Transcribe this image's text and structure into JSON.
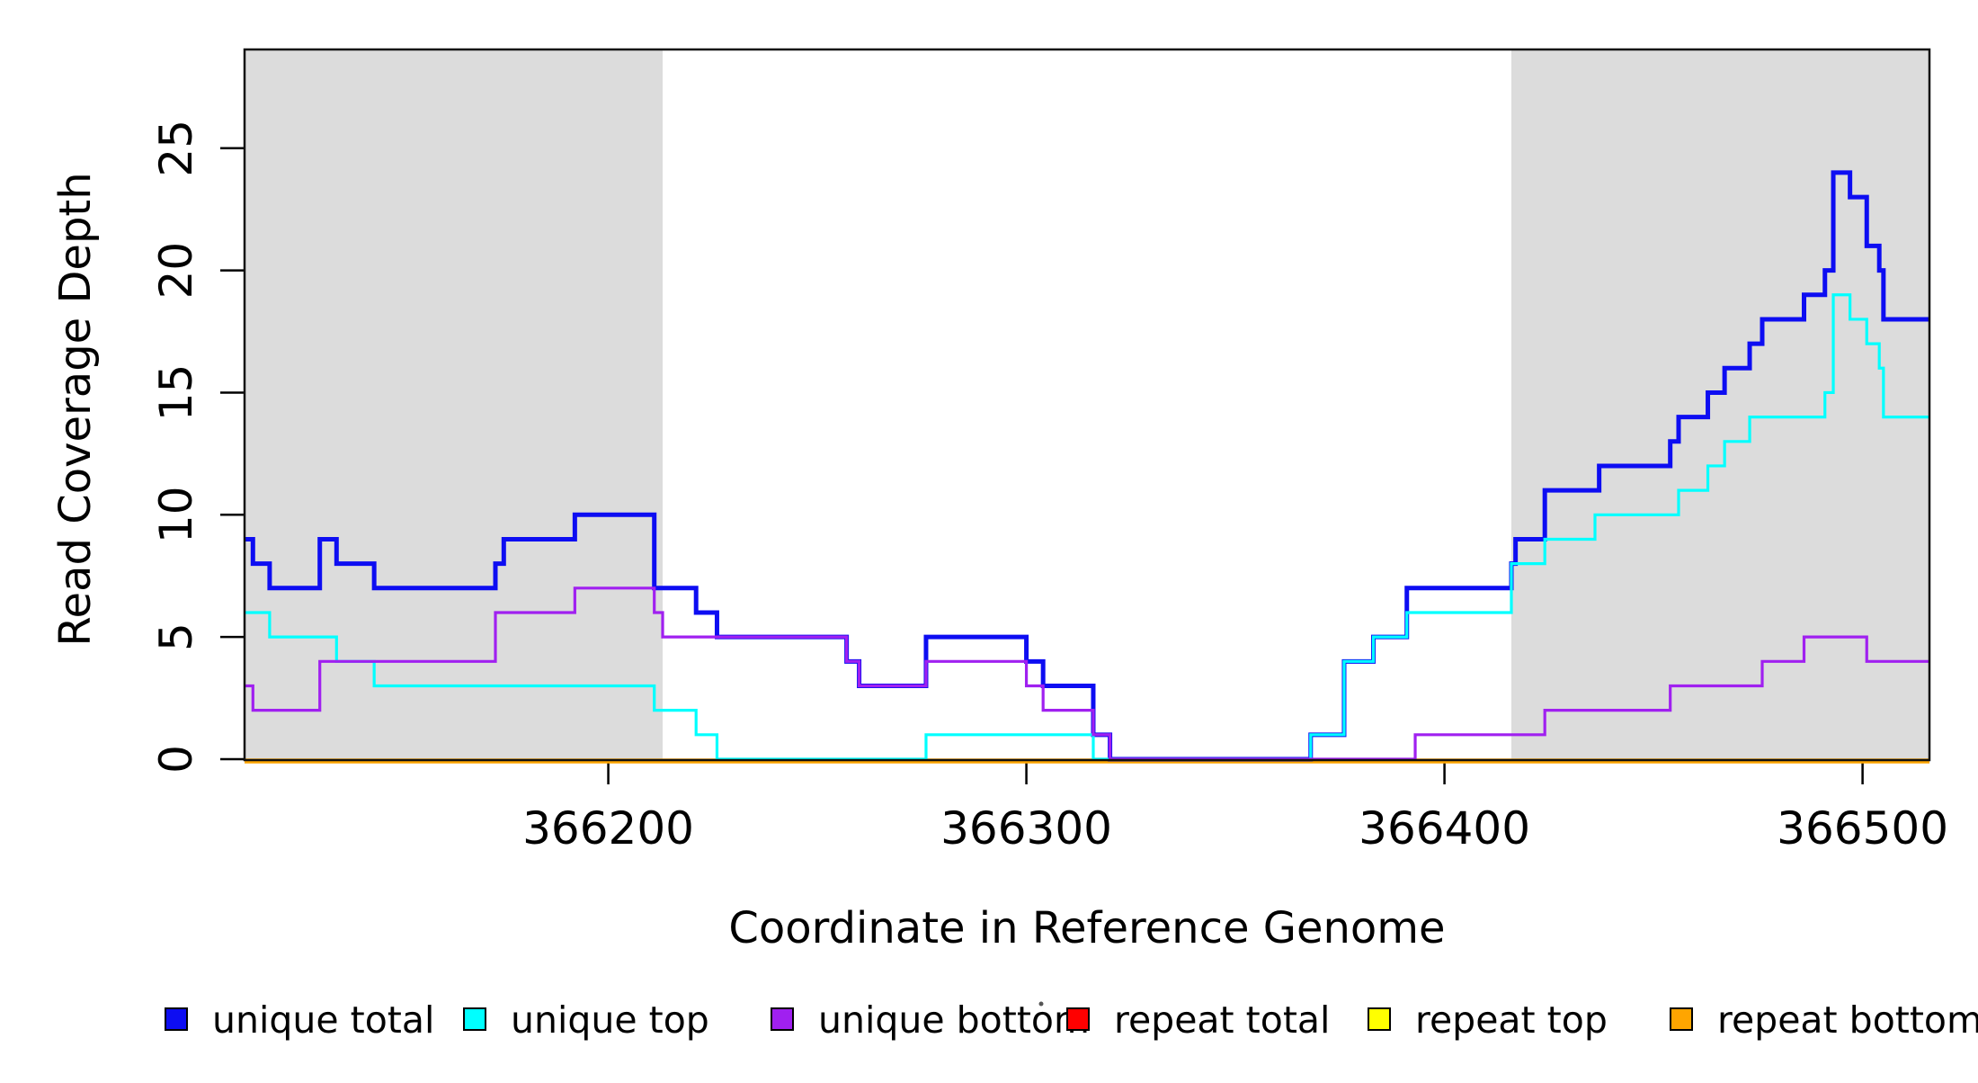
{
  "chart_data": {
    "type": "step-line",
    "title": "",
    "xlabel": "Coordinate in Reference Genome",
    "ylabel": "Read Coverage Depth",
    "xlim": [
      366113,
      366516
    ],
    "ylim": [
      0,
      29
    ],
    "x_ticks": [
      366200,
      366300,
      366400,
      366500
    ],
    "y_ticks": [
      0,
      5,
      10,
      15,
      20,
      25
    ],
    "grid": false,
    "legend_position": "bottom",
    "shade_color": "#DCDCDC",
    "shaded_regions": [
      {
        "x0": 366113,
        "x1": 366213
      },
      {
        "x0": 366416,
        "x1": 366516
      }
    ],
    "series": [
      {
        "name": "unique total",
        "color": "#0D0DF2",
        "width": 5,
        "points": [
          [
            366113,
            9
          ],
          [
            366115,
            8
          ],
          [
            366119,
            7
          ],
          [
            366131,
            9
          ],
          [
            366135,
            8
          ],
          [
            366144,
            7
          ],
          [
            366173,
            8
          ],
          [
            366175,
            9
          ],
          [
            366192,
            10
          ],
          [
            366211,
            7
          ],
          [
            366221,
            6
          ],
          [
            366226,
            5
          ],
          [
            366257,
            4
          ],
          [
            366260,
            3
          ],
          [
            366276,
            5
          ],
          [
            366300,
            4
          ],
          [
            366304,
            3
          ],
          [
            366316,
            1
          ],
          [
            366320,
            0
          ],
          [
            366368,
            1
          ],
          [
            366376,
            4
          ],
          [
            366383,
            5
          ],
          [
            366391,
            7
          ],
          [
            366416,
            8
          ],
          [
            366417,
            9
          ],
          [
            366424,
            11
          ],
          [
            366437,
            12
          ],
          [
            366454,
            13
          ],
          [
            366456,
            14
          ],
          [
            366463,
            15
          ],
          [
            366467,
            16
          ],
          [
            366473,
            17
          ],
          [
            366476,
            18
          ],
          [
            366486,
            19
          ],
          [
            366491,
            20
          ],
          [
            366493,
            24
          ],
          [
            366497,
            23
          ],
          [
            366501,
            21
          ],
          [
            366504,
            20
          ],
          [
            366505,
            18
          ]
        ]
      },
      {
        "name": "unique top",
        "color": "#00FFFF",
        "width": 3.2,
        "points": [
          [
            366113,
            6
          ],
          [
            366119,
            5
          ],
          [
            366135,
            4
          ],
          [
            366144,
            3
          ],
          [
            366211,
            2
          ],
          [
            366221,
            1
          ],
          [
            366226,
            0
          ],
          [
            366276,
            1
          ],
          [
            366316,
            0
          ],
          [
            366368,
            1
          ],
          [
            366376,
            4
          ],
          [
            366383,
            5
          ],
          [
            366391,
            6
          ],
          [
            366416,
            8
          ],
          [
            366424,
            9
          ],
          [
            366436,
            10
          ],
          [
            366456,
            11
          ],
          [
            366463,
            12
          ],
          [
            366467,
            13
          ],
          [
            366473,
            14
          ],
          [
            366491,
            15
          ],
          [
            366493,
            19
          ],
          [
            366497,
            18
          ],
          [
            366501,
            17
          ],
          [
            366504,
            16
          ],
          [
            366505,
            14
          ]
        ]
      },
      {
        "name": "unique bottom",
        "color": "#A020F0",
        "width": 3.2,
        "points": [
          [
            366113,
            3
          ],
          [
            366115,
            2
          ],
          [
            366131,
            4
          ],
          [
            366173,
            6
          ],
          [
            366192,
            7
          ],
          [
            366211,
            6
          ],
          [
            366213,
            5
          ],
          [
            366257,
            4
          ],
          [
            366260,
            3
          ],
          [
            366276,
            4
          ],
          [
            366300,
            3
          ],
          [
            366304,
            2
          ],
          [
            366316,
            1
          ],
          [
            366320,
            0
          ],
          [
            366393,
            1
          ],
          [
            366424,
            2
          ],
          [
            366454,
            3
          ],
          [
            366476,
            4
          ],
          [
            366486,
            5
          ],
          [
            366501,
            4
          ]
        ]
      },
      {
        "name": "repeat total",
        "color": "#FF0000",
        "width": 4,
        "points": [
          [
            366113,
            0
          ]
        ]
      },
      {
        "name": "repeat top",
        "color": "#FFFF00",
        "width": 4,
        "points": [
          [
            366113,
            0
          ]
        ]
      },
      {
        "name": "repeat bottom",
        "color": "#FFA500",
        "width": 5.5,
        "points": [
          [
            366113,
            0
          ]
        ]
      }
    ]
  }
}
